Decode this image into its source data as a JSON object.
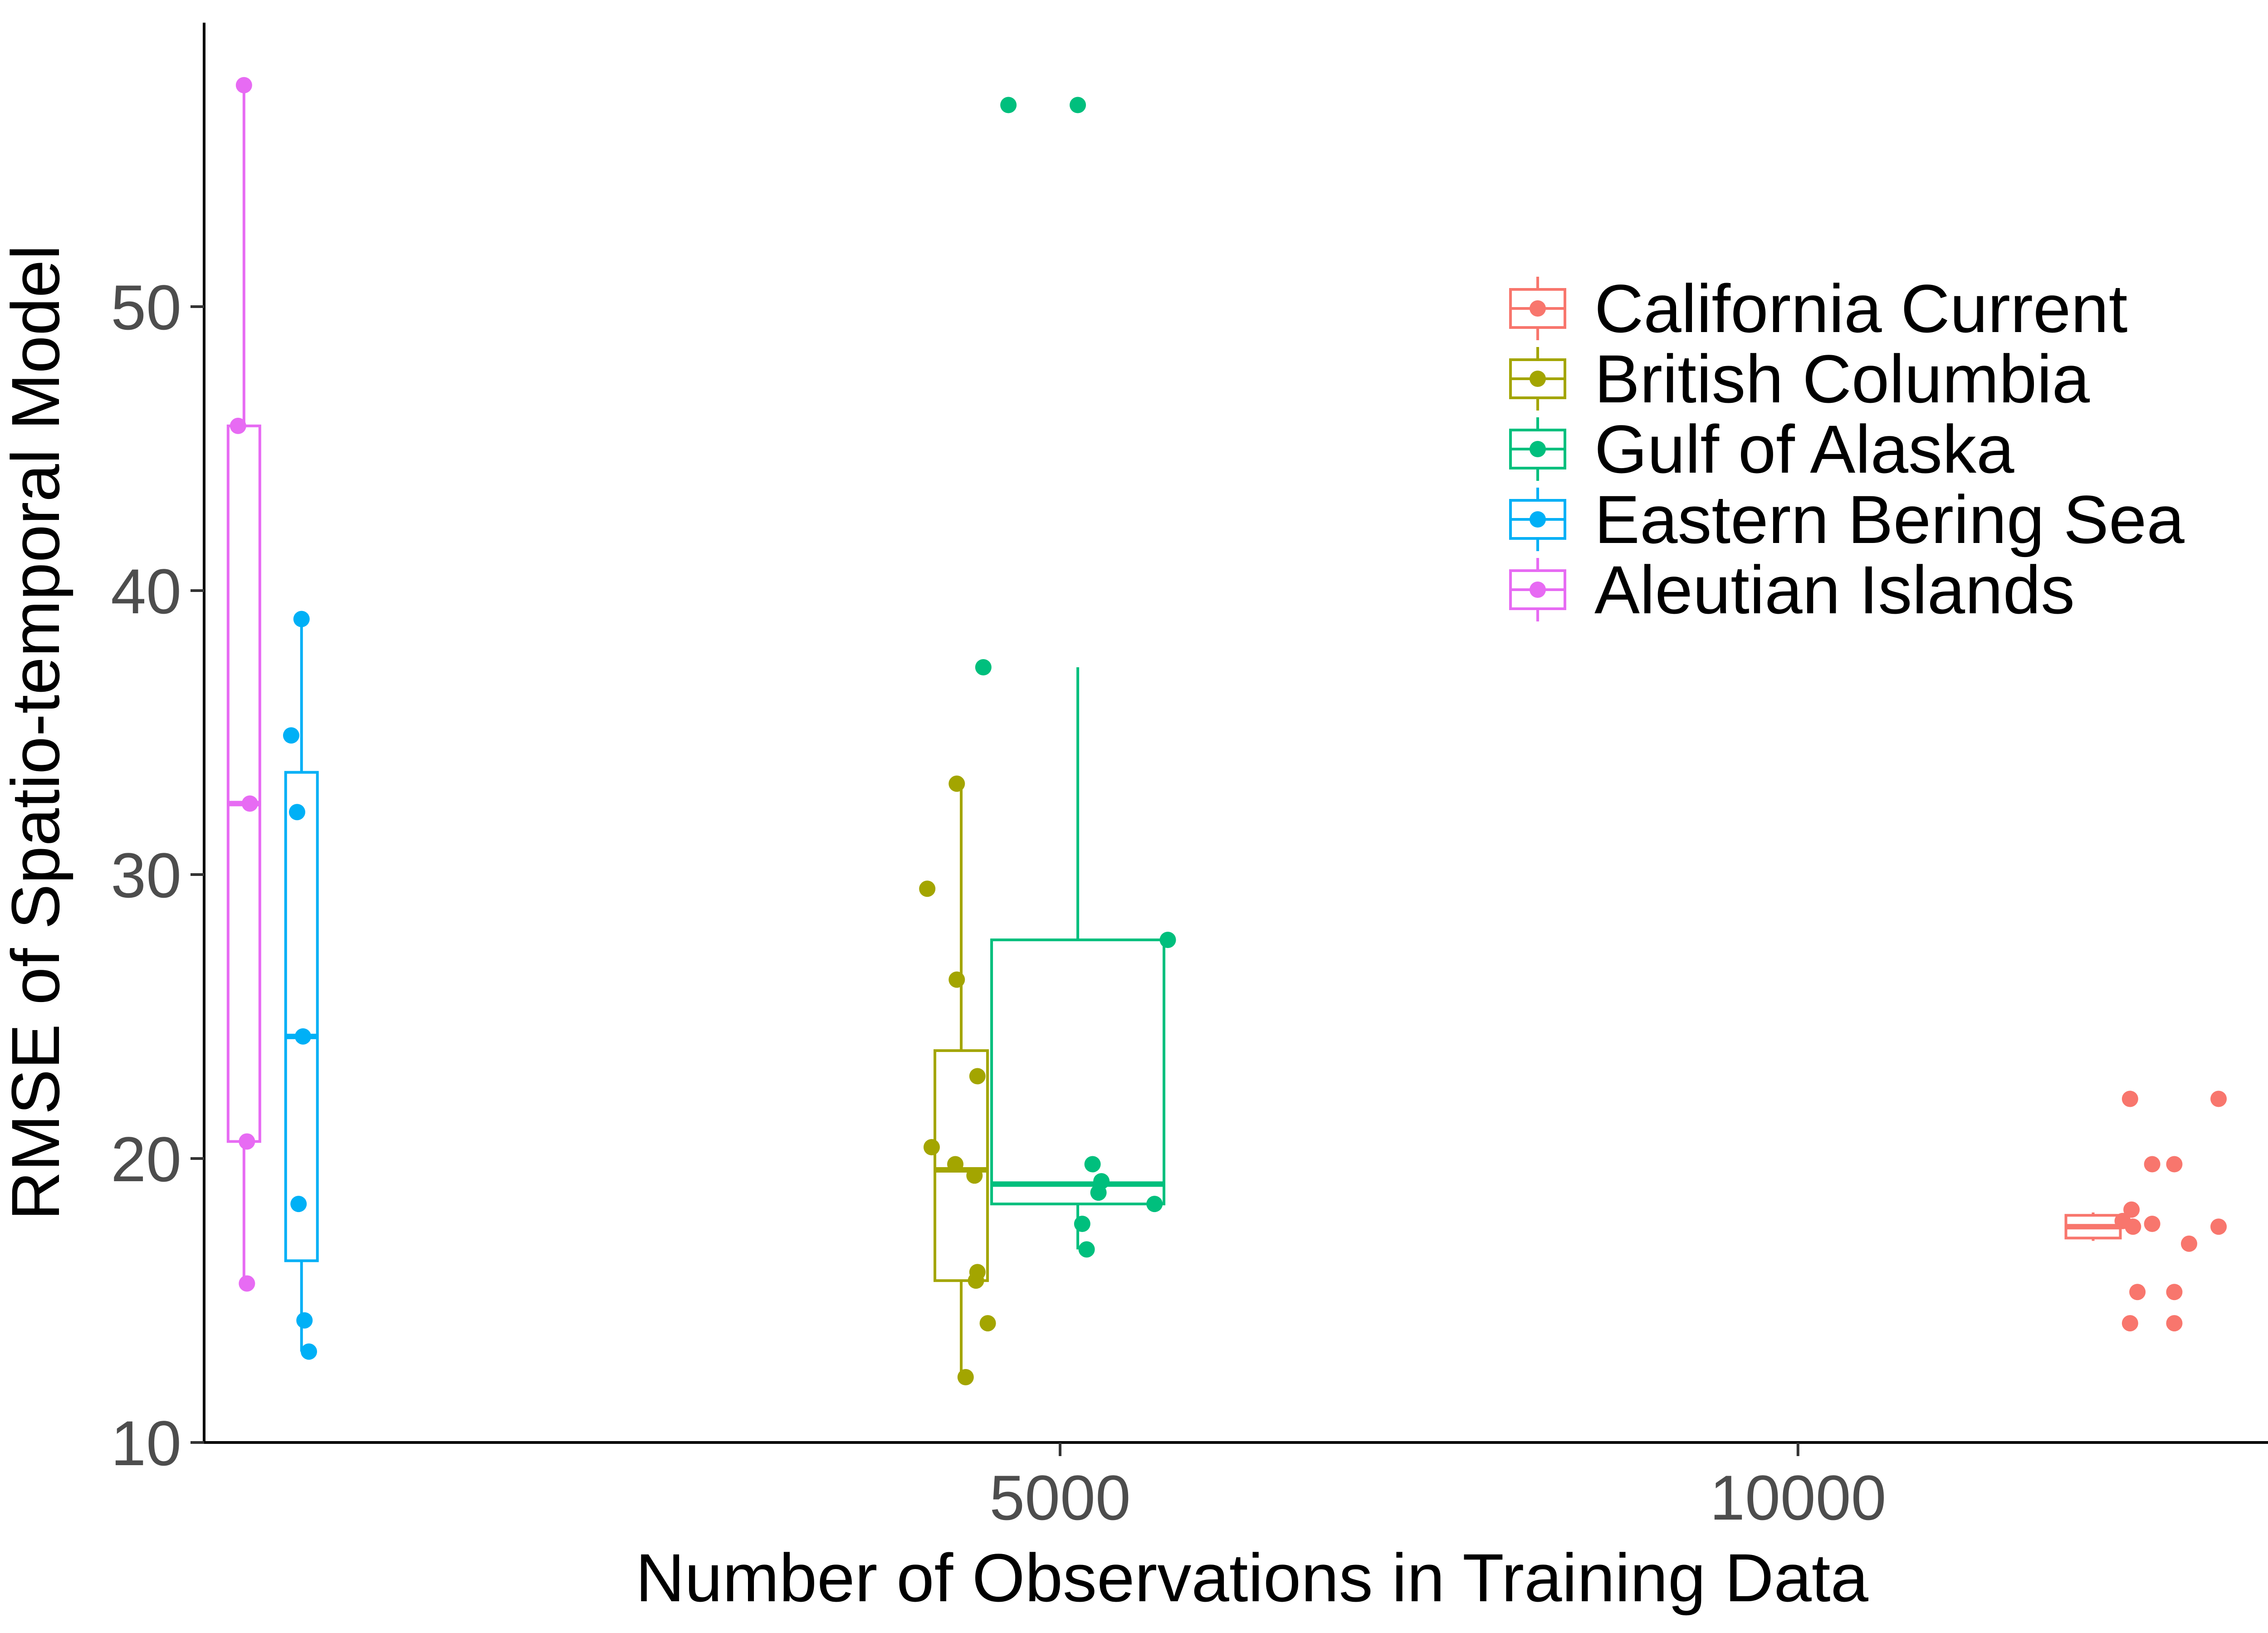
{
  "chart_data": {
    "type": "boxplot",
    "xlabel": "Number of Observations in Training Data",
    "ylabel": "RMSE of Spatio-temporal Model",
    "xlim": [
      -800,
      13400
    ],
    "ylim": [
      10,
      60
    ],
    "xticks": [
      5000,
      10000
    ],
    "yticks": [
      10,
      20,
      30,
      40,
      50
    ],
    "grid": false,
    "legend_position": "top-right",
    "series": [
      {
        "name": "California Current",
        "color": "#F8766D",
        "x": 12000,
        "box": {
          "whisker_low": 17.1,
          "q1": 17.2,
          "median": 17.6,
          "q3": 18.0,
          "whisker_high": 18.1
        },
        "points": [
          {
            "x": 12250,
            "y": 22.1
          },
          {
            "x": 12850,
            "y": 22.1
          },
          {
            "x": 12400,
            "y": 19.8
          },
          {
            "x": 12550,
            "y": 19.8
          },
          {
            "x": 12260,
            "y": 18.2
          },
          {
            "x": 12200,
            "y": 17.8
          },
          {
            "x": 12270,
            "y": 17.6
          },
          {
            "x": 12400,
            "y": 17.7
          },
          {
            "x": 12850,
            "y": 17.6
          },
          {
            "x": 12650,
            "y": 17.0
          },
          {
            "x": 12300,
            "y": 15.3
          },
          {
            "x": 12550,
            "y": 15.3
          },
          {
            "x": 12250,
            "y": 14.2
          },
          {
            "x": 12550,
            "y": 14.2
          }
        ]
      },
      {
        "name": "British Columbia",
        "color": "#A3A500",
        "x": 4330,
        "box": {
          "whisker_low": 12.2,
          "q1": 15.7,
          "median": 19.6,
          "q3": 23.8,
          "whisker_high": 33.2
        },
        "points": [
          {
            "x": 4300,
            "y": 33.2
          },
          {
            "x": 4100,
            "y": 29.5
          },
          {
            "x": 4300,
            "y": 26.3
          },
          {
            "x": 4440,
            "y": 22.9
          },
          {
            "x": 4130,
            "y": 20.4
          },
          {
            "x": 4290,
            "y": 19.8
          },
          {
            "x": 4420,
            "y": 19.4
          },
          {
            "x": 4440,
            "y": 16.0
          },
          {
            "x": 4430,
            "y": 15.7
          },
          {
            "x": 4510,
            "y": 14.2
          },
          {
            "x": 4360,
            "y": 12.3
          }
        ]
      },
      {
        "name": "Gulf of Alaska",
        "color": "#00BF7D",
        "x": 5120,
        "box": {
          "whisker_low": 16.8,
          "q1": 18.4,
          "median": 19.1,
          "q3": 27.7,
          "whisker_high": 37.3
        },
        "points": [
          {
            "x": 4650,
            "y": 57.1
          },
          {
            "x": 5120,
            "y": 57.1
          },
          {
            "x": 4480,
            "y": 37.3
          },
          {
            "x": 5730,
            "y": 27.7
          },
          {
            "x": 5220,
            "y": 19.8
          },
          {
            "x": 5280,
            "y": 19.2
          },
          {
            "x": 5260,
            "y": 18.8
          },
          {
            "x": 5640,
            "y": 18.4
          },
          {
            "x": 5150,
            "y": 17.7
          },
          {
            "x": 5180,
            "y": 16.8
          }
        ]
      },
      {
        "name": "Eastern Bering Sea",
        "color": "#00B0F6",
        "x": -140,
        "box": {
          "whisker_low": 13.2,
          "q1": 16.4,
          "median": 24.3,
          "q3": 33.6,
          "whisker_high": 39.0
        },
        "points": [
          {
            "x": -140,
            "y": 39.0
          },
          {
            "x": -210,
            "y": 34.9
          },
          {
            "x": -170,
            "y": 32.2
          },
          {
            "x": -130,
            "y": 24.3
          },
          {
            "x": -160,
            "y": 18.4
          },
          {
            "x": -120,
            "y": 14.3
          },
          {
            "x": -90,
            "y": 13.2
          }
        ]
      },
      {
        "name": "Aleutian Islands",
        "color": "#E76BF3",
        "x": -530,
        "box": {
          "whisker_low": 15.6,
          "q1": 20.6,
          "median": 32.5,
          "q3": 45.8,
          "whisker_high": 57.8
        },
        "points": [
          {
            "x": -530,
            "y": 57.8
          },
          {
            "x": -570,
            "y": 45.8
          },
          {
            "x": -490,
            "y": 32.5
          },
          {
            "x": -510,
            "y": 20.6
          },
          {
            "x": -510,
            "y": 15.6
          }
        ]
      }
    ]
  }
}
